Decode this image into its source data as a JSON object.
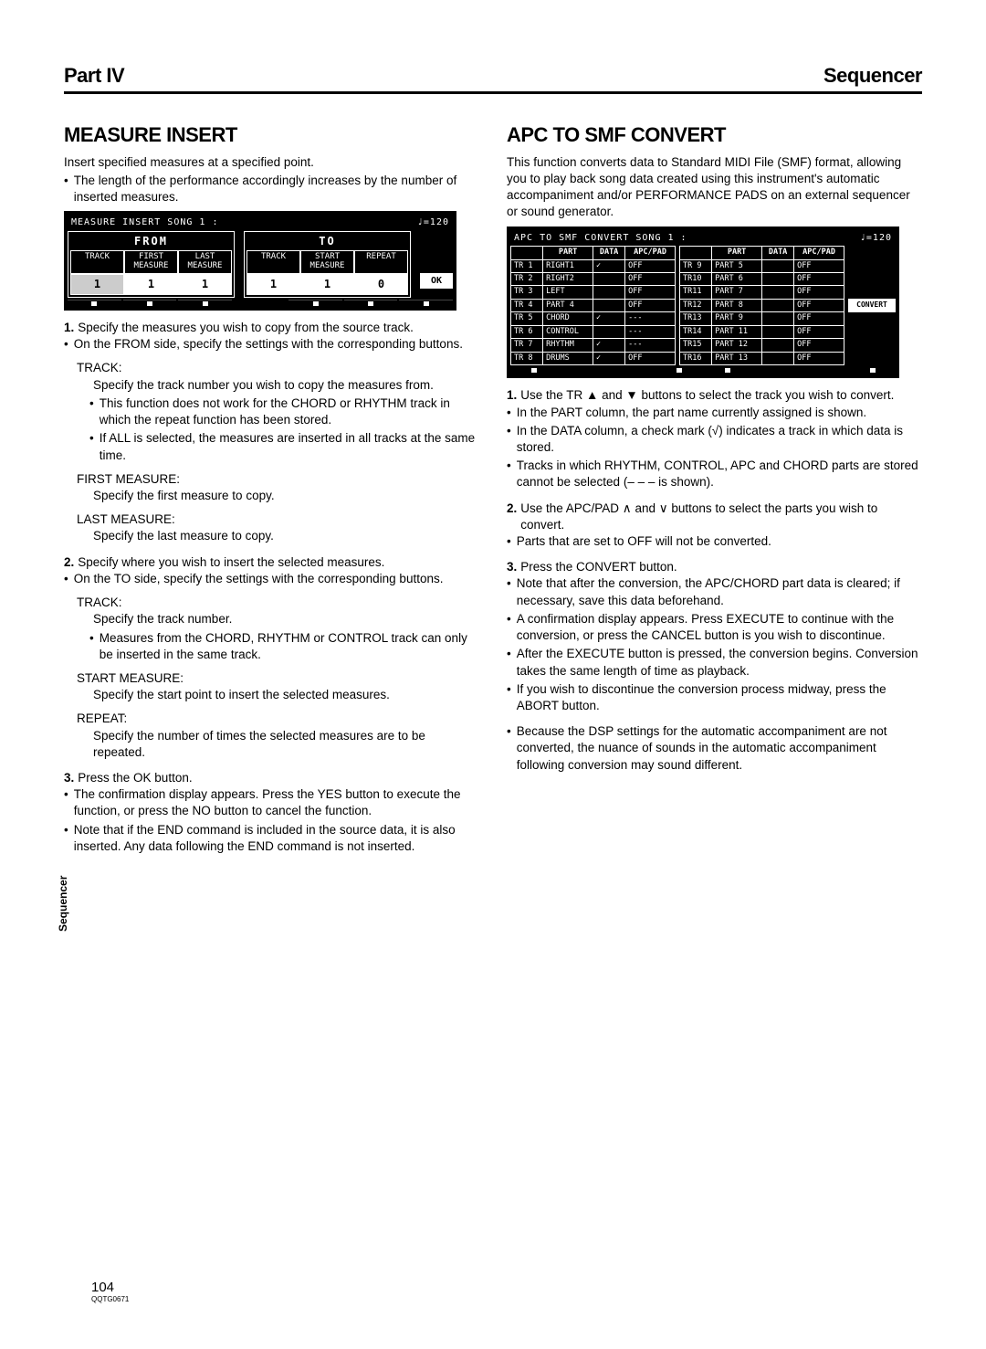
{
  "header": {
    "left": "Part IV",
    "right": "Sequencer"
  },
  "sideTab": "Sequencer",
  "footer": {
    "pageNum": "104",
    "code": "QQTG0671"
  },
  "left": {
    "title": "MEASURE INSERT",
    "intro": "Insert specified measures at a specified point.",
    "introBullet": "The length of the performance accordingly increases by the number of inserted measures.",
    "screen": {
      "titleLeft": "MEASURE INSERT   SONG 1 :",
      "tempo": "♩=120",
      "fromLabel": "FROM",
      "toLabel": "TO",
      "fromHeaders": [
        "TRACK",
        "FIRST MEASURE",
        "LAST MEASURE"
      ],
      "toHeaders": [
        "TRACK",
        "START MEASURE",
        "REPEAT"
      ],
      "fromValues": [
        "1",
        "1",
        "1"
      ],
      "toValues": [
        "1",
        "1",
        "0"
      ],
      "ok": "OK"
    },
    "step1a": "Specify the measures you wish to copy from the source track.",
    "step1b": "On the FROM side, specify the settings with the corresponding buttons.",
    "trackLabel": "TRACK:",
    "trackDesc": "Specify the track number you wish to copy the measures from.",
    "trackB1": "This function does not work for the CHORD or RHYTHM track in which the repeat function has been stored.",
    "trackB2": "If ALL is selected, the measures are inserted in all tracks at the same time.",
    "firstMLabel": "FIRST MEASURE:",
    "firstMDesc": "Specify the first measure to copy.",
    "lastMLabel": "LAST MEASURE:",
    "lastMDesc": "Specify the last measure to copy.",
    "step2a": "Specify where you wish to insert the selected measures.",
    "step2b": "On the TO side, specify the settings with the corresponding buttons.",
    "track2Label": "TRACK:",
    "track2Desc": "Specify the track number.",
    "track2B1": "Measures from the CHORD, RHYTHM or CONTROL track can only be inserted in the same track.",
    "startMLabel": "START MEASURE:",
    "startMDesc": "Specify the start point to insert the selected measures.",
    "repeatLabel": "REPEAT:",
    "repeatDesc": "Specify the number of times the selected measures are to be repeated.",
    "step3a": "Press the OK button.",
    "step3b": "The confirmation display appears. Press the YES button to execute the function, or press the NO button to cancel the function.",
    "step3c": "Note that if the END command is included in the source data, it is also inserted. Any data following the END command is not inserted."
  },
  "right": {
    "title": "APC TO SMF CONVERT",
    "intro": "This function converts data to Standard MIDI File (SMF) format, allowing you to play back song data created using this instrument's automatic accompaniment and/or PERFORMANCE PADS on an external sequencer or sound generator.",
    "screen": {
      "titleLeft": "APC TO SMF CONVERT   SONG 1 :",
      "tempo": "♩=120",
      "headers": [
        "",
        "PART",
        "DATA",
        "APC/PAD"
      ],
      "rowsLeft": [
        [
          "TR 1",
          "RIGHT1",
          "✓",
          "OFF"
        ],
        [
          "TR 2",
          "RIGHT2",
          "",
          "OFF"
        ],
        [
          "TR 3",
          "LEFT",
          "",
          "OFF"
        ],
        [
          "TR 4",
          "PART 4",
          "",
          "OFF"
        ],
        [
          "TR 5",
          "CHORD",
          "✓",
          "---"
        ],
        [
          "TR 6",
          "CONTROL",
          "",
          "---"
        ],
        [
          "TR 7",
          "RHYTHM",
          "✓",
          "---"
        ],
        [
          "TR 8",
          "DRUMS",
          "✓",
          "OFF"
        ]
      ],
      "rowsRight": [
        [
          "TR 9",
          "PART 5",
          "",
          "OFF"
        ],
        [
          "TR10",
          "PART 6",
          "",
          "OFF"
        ],
        [
          "TR11",
          "PART 7",
          "",
          "OFF"
        ],
        [
          "TR12",
          "PART 8",
          "",
          "OFF"
        ],
        [
          "TR13",
          "PART 9",
          "",
          "OFF"
        ],
        [
          "TR14",
          "PART 11",
          "",
          "OFF"
        ],
        [
          "TR15",
          "PART 12",
          "",
          "OFF"
        ],
        [
          "TR16",
          "PART 13",
          "",
          "OFF"
        ]
      ],
      "convert": "CONVERT"
    },
    "step1a": "Use the TR ▲ and ▼ buttons to select the track you wish to convert.",
    "step1b": "In the PART column, the part name currently assigned is shown.",
    "step1c": "In the DATA column, a check mark (√) indicates a track in which data is stored.",
    "step1d": "Tracks in which RHYTHM, CONTROL, APC and CHORD parts are stored cannot be selected (– – – is shown).",
    "step2a": "Use the APC/PAD ∧ and ∨ buttons to select the parts you wish to convert.",
    "step2b": "Parts that are set to OFF will not be converted.",
    "step3a": "Press the CONVERT button.",
    "step3b": "Note that after the conversion, the APC/CHORD part data is cleared; if necessary, save this data beforehand.",
    "step3c": "A confirmation display appears. Press EXECUTE to continue with the conversion, or press the CANCEL button is you wish to discontinue.",
    "step3d": "After the EXECUTE button is pressed, the conversion begins. Conversion takes the same length of time as playback.",
    "step3e": "If you wish to discontinue the conversion process midway, press the ABORT button.",
    "step3f": "Because the DSP settings for the automatic accompaniment are not converted, the nuance of sounds in the automatic accompaniment following conversion may sound different."
  }
}
